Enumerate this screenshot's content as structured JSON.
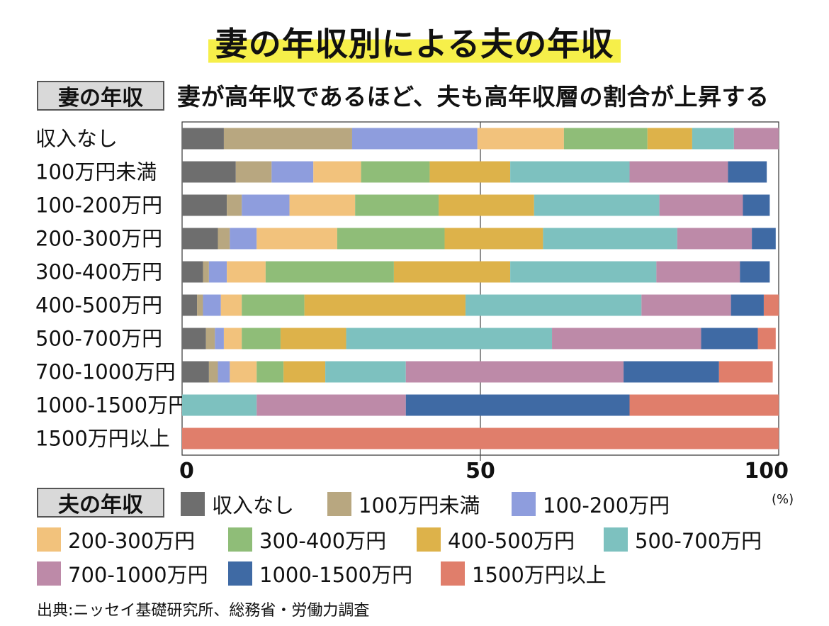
{
  "title": "妻の年収別による夫の年収",
  "y_group_label": "妻の年収",
  "subtitle": "妻が高年収であるほど、夫も高年収層の割合が上昇する",
  "legend_label": "夫の年収",
  "source": "出典:ニッセイ基礎研究所、総務省・労働力調査",
  "chart_data": {
    "type": "bar",
    "orientation": "horizontal",
    "stacked": true,
    "title": "妻の年収別による夫の年収",
    "subtitle": "妻が高年収であるほど、夫も高年収層の割合が上昇する",
    "unit": "(%)",
    "xlim": [
      0,
      100
    ],
    "x_ticks": [
      "0",
      "50",
      "100"
    ],
    "legend_position": "bottom",
    "categories": [
      "収入なし",
      "100万円未満",
      "100-200万円",
      "200-300万円",
      "300-400万円",
      "400-500万円",
      "500-700万円",
      "700-1000万円",
      "1000-1500万円",
      "1500万円以上"
    ],
    "series": [
      {
        "name": "収入なし",
        "color": "#6e6e6e",
        "values": [
          7,
          9,
          7.5,
          6,
          3.5,
          2.5,
          4,
          4.5,
          0,
          0
        ]
      },
      {
        "name": "100万円未満",
        "color": "#b8a780",
        "values": [
          21.5,
          6,
          2.5,
          2,
          1,
          1,
          1.5,
          1.5,
          0,
          0
        ]
      },
      {
        "name": "100-200万円",
        "color": "#8e9ddd",
        "values": [
          21,
          7,
          8,
          4.5,
          3,
          3,
          1.5,
          2,
          0,
          0
        ]
      },
      {
        "name": "200-300万円",
        "color": "#f2c27c",
        "values": [
          14.5,
          8,
          11,
          13.5,
          6.5,
          3.5,
          3,
          4.5,
          0,
          0
        ]
      },
      {
        "name": "300-400万円",
        "color": "#8fbd78",
        "values": [
          14,
          11.5,
          14,
          18,
          21.5,
          10.5,
          6.5,
          4.5,
          0,
          0
        ]
      },
      {
        "name": "400-500万円",
        "color": "#ddb24a",
        "values": [
          7.5,
          13.5,
          16,
          16.5,
          19.5,
          27,
          11,
          7,
          0,
          0
        ]
      },
      {
        "name": "500-700万円",
        "color": "#7dc1bf",
        "values": [
          7,
          20,
          21,
          22.5,
          24.5,
          29.5,
          34.5,
          13.5,
          12.5,
          0
        ]
      },
      {
        "name": "700-1000万円",
        "color": "#bd8aa8",
        "values": [
          7.5,
          16.5,
          14,
          12.5,
          14,
          15,
          25,
          36.5,
          25,
          0
        ]
      },
      {
        "name": "1000-1500万円",
        "color": "#3f6aa4",
        "values": [
          0,
          6.5,
          4.5,
          4,
          5,
          5.5,
          9.5,
          16,
          37.5,
          0
        ]
      },
      {
        "name": "1500万円以上",
        "color": "#e07e6b",
        "values": [
          0,
          0,
          0,
          0,
          0,
          2.5,
          3,
          9,
          25,
          100
        ]
      }
    ]
  }
}
